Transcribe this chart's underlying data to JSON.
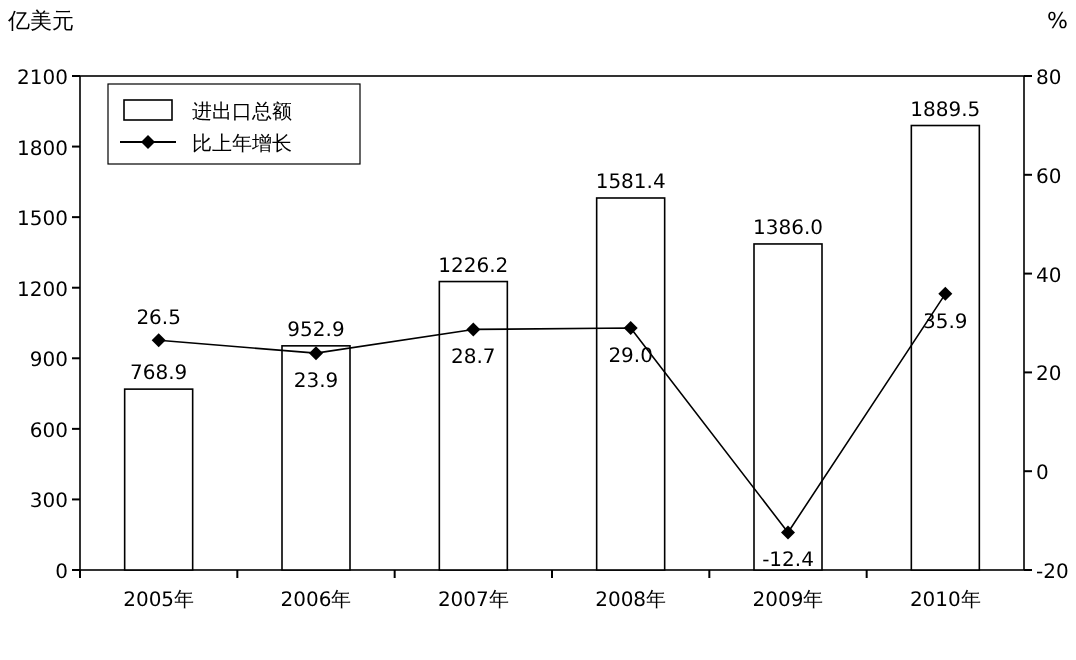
{
  "chart_data": {
    "type": "bar",
    "ylabel": "亿美元",
    "y2label": "%",
    "categories": [
      "2005年",
      "2006年",
      "2007年",
      "2008年",
      "2009年",
      "2010年"
    ],
    "series": [
      {
        "name": "进出口总额",
        "color": "#ffffff",
        "values": [
          768.9,
          952.9,
          1226.2,
          1581.4,
          1386.0,
          1889.5
        ],
        "value_labels": [
          "768.9",
          "952.9",
          "1226.2",
          "1581.4",
          "1386.0",
          "1889.5"
        ]
      },
      {
        "name": "比上年增长",
        "type": "line",
        "axis": "y2",
        "color": "#000000",
        "marker": "diamond",
        "values": [
          26.5,
          23.9,
          28.7,
          29.0,
          -12.4,
          35.9
        ],
        "value_labels": [
          "26.5",
          "23.9",
          "28.7",
          "29.0",
          "-12.4",
          "35.9"
        ]
      }
    ],
    "ylim": [
      0,
      2100
    ],
    "yticks": [
      0,
      300,
      600,
      900,
      1200,
      1500,
      1800,
      2100
    ],
    "y2lim": [
      -20,
      80
    ],
    "y2ticks": [
      -20,
      0,
      20,
      40,
      60,
      80
    ],
    "legend": "top left",
    "grid": false
  }
}
